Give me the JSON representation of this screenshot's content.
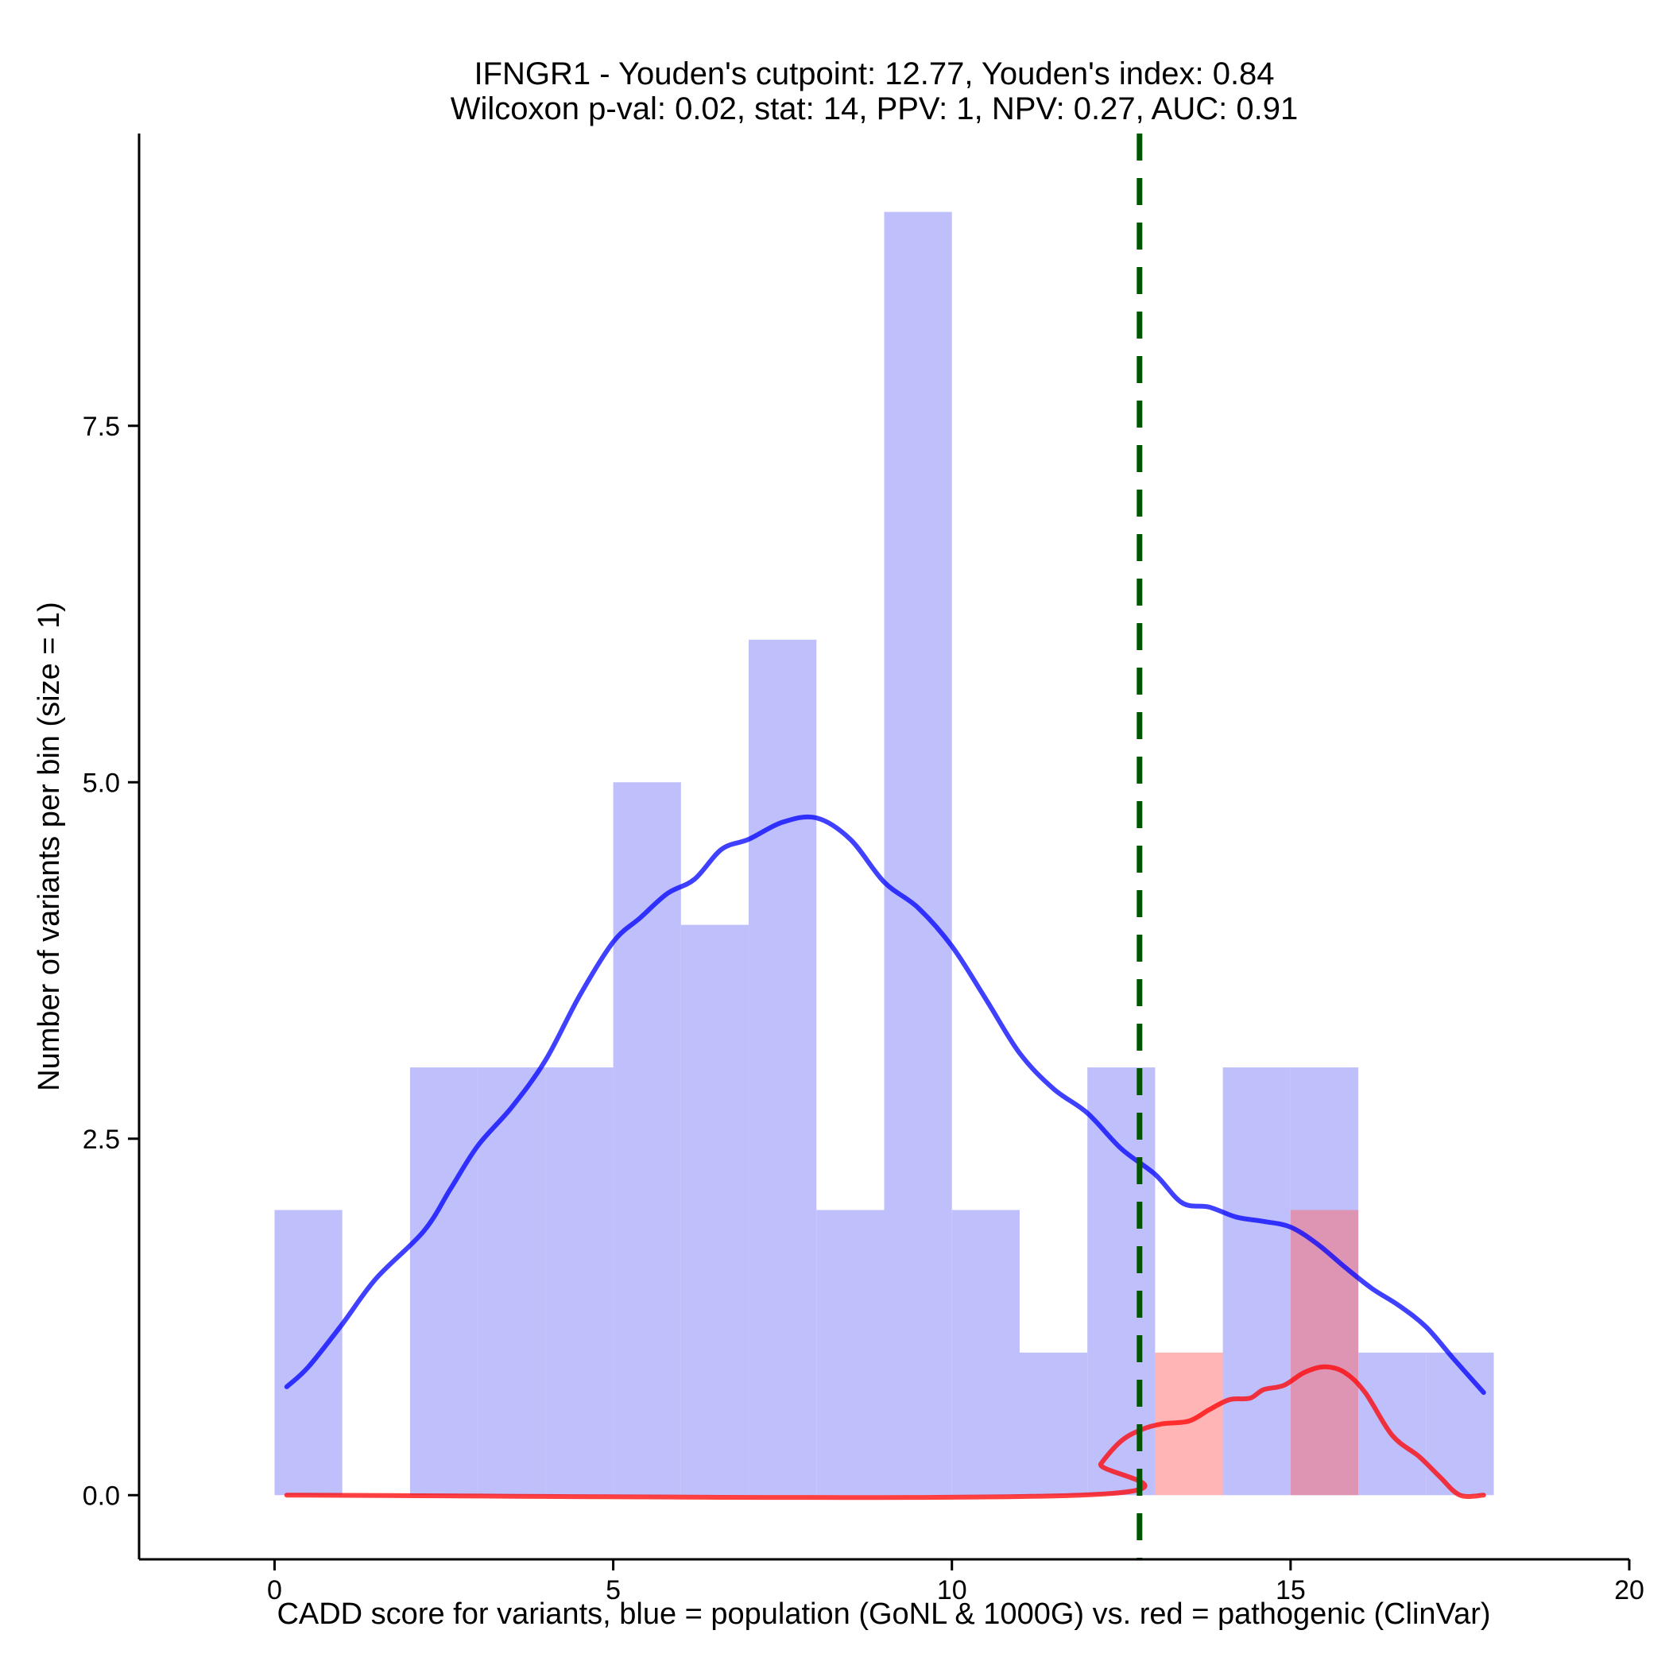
{
  "chart_data": {
    "type": "histogram",
    "title": "IFNGR1 - Youden's cutpoint: 12.77, Youden's index: 0.84",
    "subtitle": "Wilcoxon p-val: 0.02, stat: 14, PPV: 1, NPV: 0.27, AUC: 0.91",
    "xlabel": "CADD score for variants, blue = population (GoNL & 1000G) vs. red = pathogenic (ClinVar)",
    "ylabel": "Number of variants per bin (size = 1)",
    "xlim": [
      -2,
      20
    ],
    "ylim": [
      -0.45,
      9.55
    ],
    "x_ticks": [
      {
        "value": 0,
        "label": "0"
      },
      {
        "value": 5,
        "label": "5"
      },
      {
        "value": 10,
        "label": "10"
      },
      {
        "value": 15,
        "label": "15"
      },
      {
        "value": 20,
        "label": "20"
      }
    ],
    "y_ticks": [
      {
        "value": 0,
        "label": "0.0"
      },
      {
        "value": 2.5,
        "label": "2.5"
      },
      {
        "value": 5,
        "label": "5.0"
      },
      {
        "value": 7.5,
        "label": "7.5"
      }
    ],
    "bin_size": 1,
    "cutpoint": 12.77,
    "series": [
      {
        "group": "population",
        "color": "#0000ff",
        "bar_color": "#bfbffc",
        "bins": [
          {
            "x0": 0,
            "x1": 1,
            "count": 2
          },
          {
            "x0": 1,
            "x1": 2,
            "count": 0
          },
          {
            "x0": 2,
            "x1": 3,
            "count": 3
          },
          {
            "x0": 3,
            "x1": 4,
            "count": 3
          },
          {
            "x0": 4,
            "x1": 5,
            "count": 3
          },
          {
            "x0": 5,
            "x1": 6,
            "count": 5
          },
          {
            "x0": 6,
            "x1": 7,
            "count": 4
          },
          {
            "x0": 7,
            "x1": 8,
            "count": 6
          },
          {
            "x0": 8,
            "x1": 9,
            "count": 2
          },
          {
            "x0": 9,
            "x1": 10,
            "count": 9
          },
          {
            "x0": 10,
            "x1": 11,
            "count": 2
          },
          {
            "x0": 11,
            "x1": 12,
            "count": 1
          },
          {
            "x0": 12,
            "x1": 13,
            "count": 3
          },
          {
            "x0": 13,
            "x1": 14,
            "count": 0
          },
          {
            "x0": 14,
            "x1": 15,
            "count": 3
          },
          {
            "x0": 15,
            "x1": 16,
            "count": 3
          },
          {
            "x0": 16,
            "x1": 17,
            "count": 1
          },
          {
            "x0": 17,
            "x1": 18,
            "count": 1
          }
        ],
        "density_line": [
          [
            0.18,
            0.76
          ],
          [
            0.5,
            0.9
          ],
          [
            1.0,
            1.2
          ],
          [
            1.5,
            1.52
          ],
          [
            2.2,
            1.85
          ],
          [
            2.6,
            2.15
          ],
          [
            3.0,
            2.45
          ],
          [
            3.5,
            2.72
          ],
          [
            4.0,
            3.05
          ],
          [
            4.5,
            3.5
          ],
          [
            5.0,
            3.88
          ],
          [
            5.4,
            4.05
          ],
          [
            5.8,
            4.22
          ],
          [
            6.2,
            4.32
          ],
          [
            6.6,
            4.53
          ],
          [
            7.0,
            4.6
          ],
          [
            7.5,
            4.72
          ],
          [
            8.0,
            4.75
          ],
          [
            8.5,
            4.6
          ],
          [
            9.0,
            4.3
          ],
          [
            9.5,
            4.12
          ],
          [
            10.0,
            3.85
          ],
          [
            10.5,
            3.48
          ],
          [
            11.0,
            3.1
          ],
          [
            11.5,
            2.85
          ],
          [
            12.0,
            2.68
          ],
          [
            12.5,
            2.43
          ],
          [
            13.0,
            2.25
          ],
          [
            13.4,
            2.05
          ],
          [
            13.8,
            2.02
          ],
          [
            14.2,
            1.95
          ],
          [
            14.6,
            1.92
          ],
          [
            15.0,
            1.88
          ],
          [
            15.4,
            1.76
          ],
          [
            15.8,
            1.6
          ],
          [
            16.2,
            1.45
          ],
          [
            16.6,
            1.33
          ],
          [
            17.0,
            1.18
          ],
          [
            17.4,
            0.96
          ],
          [
            17.85,
            0.72
          ]
        ]
      },
      {
        "group": "pathogenic",
        "color": "#ff0000",
        "bar_color": "#ffbdbd",
        "bins": [
          {
            "x0": 13,
            "x1": 14,
            "count": 1
          },
          {
            "x0": 15,
            "x1": 16,
            "count": 2
          }
        ],
        "density_line": [
          [
            0.18,
            0
          ],
          [
            11.9,
            0
          ],
          [
            12.2,
            0.22
          ],
          [
            12.5,
            0.38
          ],
          [
            12.8,
            0.46
          ],
          [
            13.1,
            0.5
          ],
          [
            13.5,
            0.52
          ],
          [
            13.8,
            0.6
          ],
          [
            14.1,
            0.67
          ],
          [
            14.4,
            0.68
          ],
          [
            14.6,
            0.74
          ],
          [
            14.9,
            0.77
          ],
          [
            15.2,
            0.86
          ],
          [
            15.5,
            0.9
          ],
          [
            15.8,
            0.86
          ],
          [
            16.1,
            0.72
          ],
          [
            16.5,
            0.42
          ],
          [
            16.9,
            0.27
          ],
          [
            17.2,
            0.13
          ],
          [
            17.5,
            0
          ],
          [
            17.85,
            0
          ]
        ]
      }
    ]
  }
}
